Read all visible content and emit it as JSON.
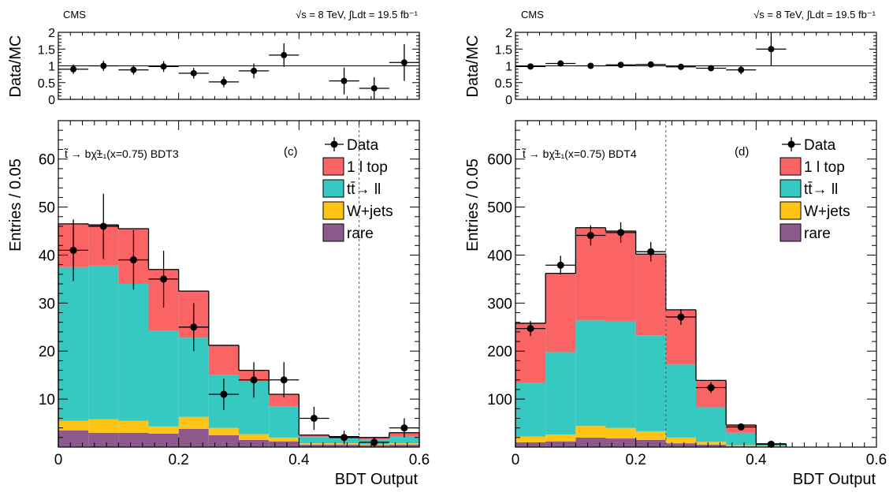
{
  "chart_data": [
    {
      "type": "bar",
      "header": {
        "experiment": "CMS",
        "energy": "√s = 8 TeV,  ∫Ldt = 19.5 fb⁻¹"
      },
      "process_label": "t̃ → bχ̃±₁(x=0.75) BDT3",
      "panel_tag": "(c)",
      "xlabel": "BDT Output",
      "ylabel": "Entries / 0.05",
      "ratio_ylabel": "Data/MC",
      "xlim": [
        0,
        0.6
      ],
      "ylim": [
        0,
        68
      ],
      "ratio_ylim": [
        0,
        2
      ],
      "x_ticks": [
        "0",
        "0.2",
        "0.4",
        "0.6"
      ],
      "y_ticks": [
        "10",
        "20",
        "30",
        "40",
        "50",
        "60"
      ],
      "ratio_ticks": [
        "0",
        "0.5",
        "1",
        "1.5",
        "2"
      ],
      "bin_edges": [
        0,
        0.05,
        0.1,
        0.15,
        0.2,
        0.25,
        0.3,
        0.35,
        0.4,
        0.45,
        0.5,
        0.55,
        0.6
      ],
      "cut_line": 0.5,
      "stack": [
        {
          "name": "rare",
          "color": "#8e5a8e",
          "values": [
            3.5,
            3.0,
            3.0,
            2.8,
            3.8,
            2.5,
            1.5,
            1.2,
            0.5,
            0.5,
            0.4,
            0.5
          ]
        },
        {
          "name": "W+jets",
          "color": "#ffc414",
          "values": [
            2.0,
            2.8,
            2.5,
            1.5,
            2.5,
            1.5,
            1.2,
            0.8,
            0.3,
            0.3,
            0.2,
            0.3
          ]
        },
        {
          "name": "tt̄→ ll",
          "color": "#35c9c2",
          "values": [
            32.0,
            32.0,
            28.5,
            20.0,
            16.5,
            11.0,
            11.0,
            6.5,
            1.3,
            1.0,
            1.0,
            1.5
          ]
        },
        {
          "name": "1 l top",
          "color": "#fa6464",
          "values": [
            9.0,
            8.5,
            11.5,
            12.7,
            9.7,
            6.2,
            2.3,
            2.5,
            0.4,
            0.4,
            0.4,
            0.7
          ]
        }
      ],
      "data_points": {
        "name": "Data",
        "values": [
          41,
          46,
          39,
          35,
          25,
          11,
          14,
          14,
          6,
          2,
          1,
          4
        ],
        "errors": [
          6.4,
          6.8,
          6.2,
          5.9,
          5.0,
          3.3,
          3.7,
          3.7,
          2.4,
          1.4,
          1.0,
          2.0
        ]
      },
      "ratio": {
        "values": [
          0.9,
          1.0,
          0.88,
          0.98,
          0.78,
          0.52,
          0.85,
          1.32,
          0.55,
          0.33,
          1.1
        ],
        "x_centers": [
          0.025,
          0.075,
          0.125,
          0.175,
          0.225,
          0.275,
          0.325,
          0.375,
          0.475,
          0.525,
          0.575
        ],
        "errors": [
          0.14,
          0.15,
          0.14,
          0.16,
          0.16,
          0.16,
          0.22,
          0.35,
          0.4,
          0.33,
          0.55
        ]
      },
      "legend": [
        "Data",
        "1 l top",
        "tt̄→ ll",
        "W+jets",
        "rare"
      ]
    },
    {
      "type": "bar",
      "header": {
        "experiment": "CMS",
        "energy": "√s = 8 TeV,  ∫Ldt = 19.5 fb⁻¹"
      },
      "process_label": "t̃ → bχ̃±₁(x=0.75) BDT4",
      "panel_tag": "(d)",
      "xlabel": "BDT Output",
      "ylabel": "Entries / 0.05",
      "ratio_ylabel": "Data/MC",
      "xlim": [
        0,
        0.6
      ],
      "ylim": [
        0,
        680
      ],
      "ratio_ylim": [
        0,
        2
      ],
      "x_ticks": [
        "0",
        "0.2",
        "0.4",
        "0.6"
      ],
      "y_ticks": [
        "100",
        "200",
        "300",
        "400",
        "500",
        "600"
      ],
      "ratio_ticks": [
        "0",
        "0.5",
        "1",
        "1.5",
        "2"
      ],
      "bin_edges": [
        0,
        0.05,
        0.1,
        0.15,
        0.2,
        0.25,
        0.3,
        0.35,
        0.4,
        0.45,
        0.5,
        0.55,
        0.6
      ],
      "cut_line": 0.25,
      "stack": [
        {
          "name": "rare",
          "color": "#8e5a8e",
          "values": [
            10,
            12,
            20,
            18,
            15,
            8,
            5,
            2,
            1,
            0,
            0,
            0
          ]
        },
        {
          "name": "W+jets",
          "color": "#ffc414",
          "values": [
            12,
            14,
            24,
            22,
            18,
            12,
            6,
            2,
            1,
            0,
            0,
            0
          ]
        },
        {
          "name": "tt̄→ ll",
          "color": "#35c9c2",
          "values": [
            112,
            172,
            220,
            222,
            200,
            152,
            72,
            26,
            3,
            0,
            0,
            0
          ]
        },
        {
          "name": "1 l top",
          "color": "#fa6464",
          "values": [
            124,
            164,
            193,
            188,
            169,
            114,
            56,
            16,
            2,
            0,
            0,
            0
          ]
        }
      ],
      "data_points": {
        "name": "Data",
        "values": [
          247,
          379,
          441,
          447,
          407,
          271,
          124,
          42,
          6,
          0,
          0,
          0
        ],
        "errors": [
          15.7,
          19.5,
          21,
          21.1,
          20.2,
          16.5,
          11.1,
          6.5,
          2.4,
          0,
          0,
          0
        ]
      },
      "ratio": {
        "values": [
          0.98,
          1.07,
          1.0,
          1.03,
          1.04,
          0.97,
          0.93,
          0.88,
          1.5
        ],
        "x_centers": [
          0.025,
          0.075,
          0.125,
          0.175,
          0.225,
          0.275,
          0.325,
          0.375,
          0.425
        ],
        "errors": [
          0.06,
          0.06,
          0.05,
          0.05,
          0.05,
          0.06,
          0.08,
          0.13,
          0.5
        ]
      },
      "legend": [
        "Data",
        "1 l top",
        "tt̄→ ll",
        "W+jets",
        "rare"
      ]
    }
  ]
}
